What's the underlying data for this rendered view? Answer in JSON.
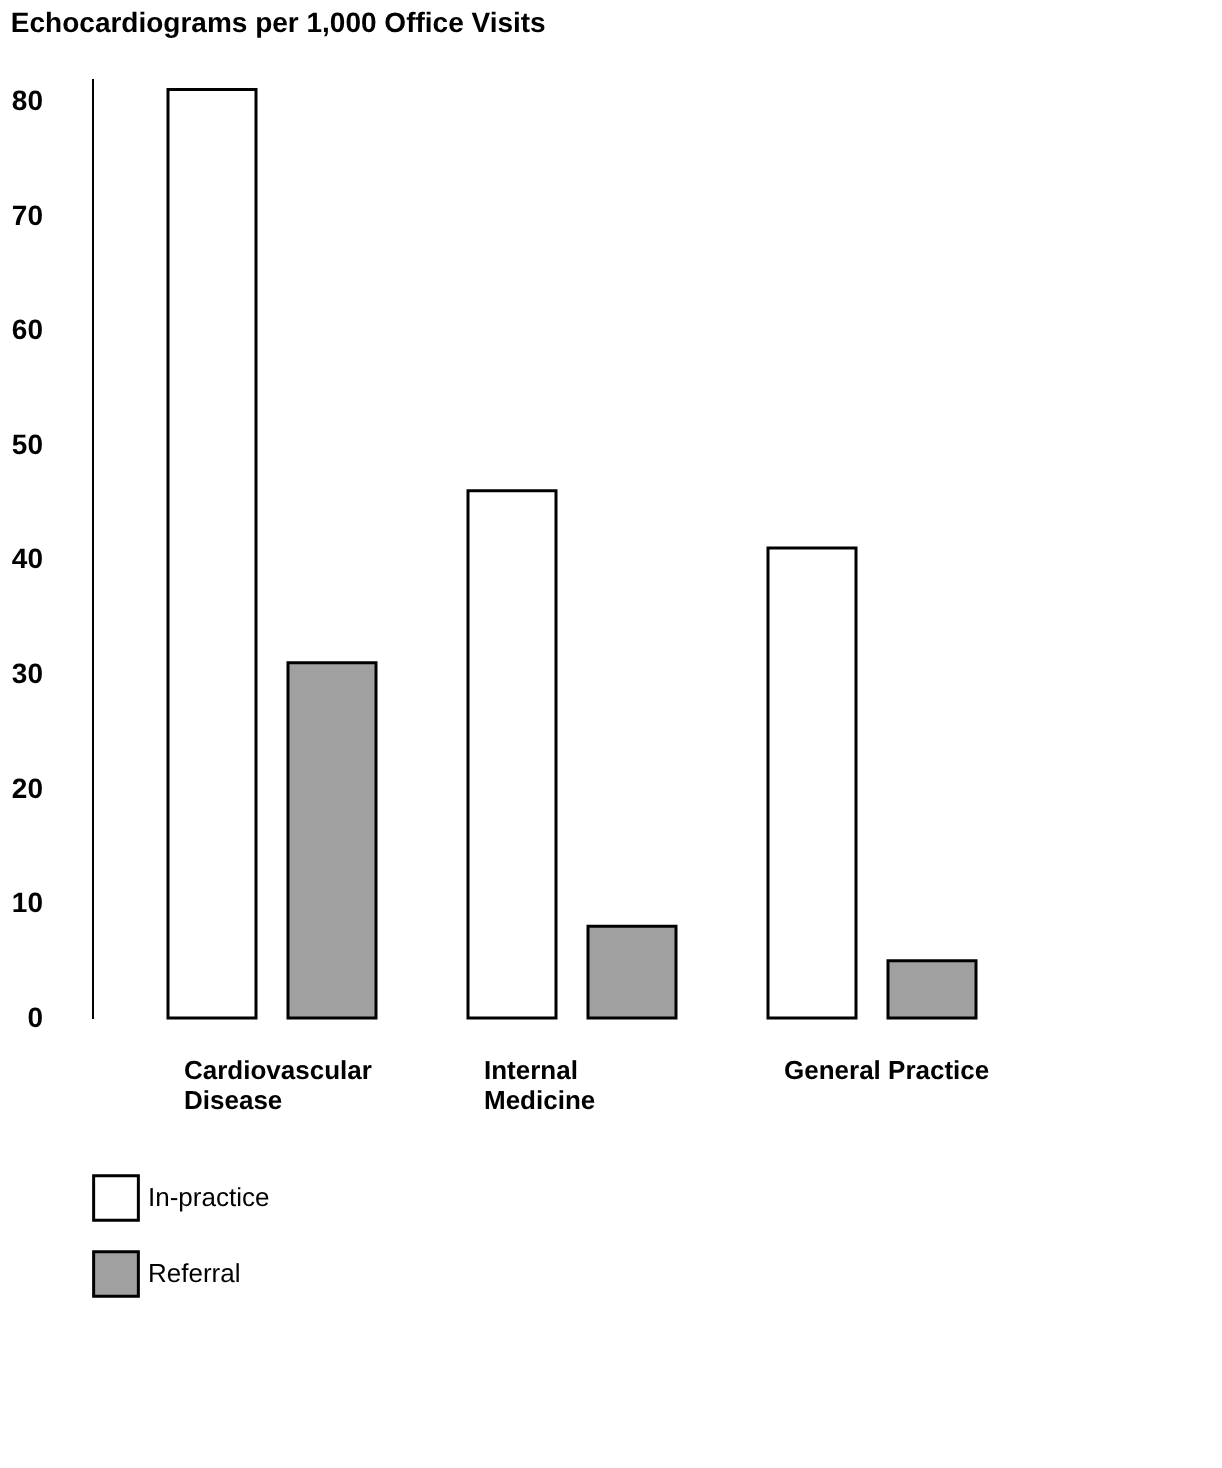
{
  "chart_data": {
    "type": "bar",
    "title": "Echocardiograms per 1,000 Office Visits",
    "categories": [
      "Cardiovascular\nDisease",
      "Internal\nMedicine",
      "General Practice"
    ],
    "series": [
      {
        "name": "In-practice",
        "color": "#ffffff",
        "values": [
          81,
          46,
          41
        ]
      },
      {
        "name": "Referral",
        "color": "#a0a0a0",
        "values": [
          31,
          8,
          5
        ]
      }
    ],
    "ylim": [
      0,
      82
    ],
    "yticks": [
      0,
      10,
      20,
      30,
      40,
      50,
      60,
      70,
      80
    ],
    "grid": false,
    "legend": "bottom left"
  }
}
